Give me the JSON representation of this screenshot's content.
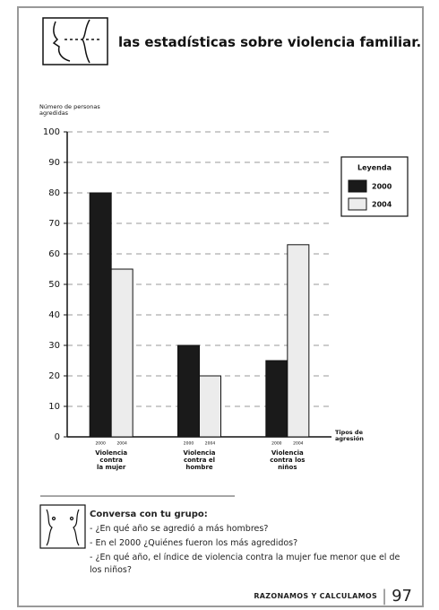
{
  "header": {
    "title": "las estadísticas sobre violencia familiar."
  },
  "chart_data": {
    "type": "bar",
    "y_label": "Número de personas agredidas",
    "x_label": "Tipos de agresión",
    "legend_title": "Leyenda",
    "legend": "right",
    "grid": true,
    "categories": [
      "Violencia\ncontra\nla mujer",
      "Violencia\ncontra el\nhombre",
      "Violencia\ncontra los\nniños"
    ],
    "series": [
      {
        "name": "2000",
        "color": "#1a1a1a",
        "values": [
          80,
          30,
          25
        ]
      },
      {
        "name": "2004",
        "color": "#ececec",
        "values": [
          55,
          20,
          63
        ]
      }
    ],
    "ylim": [
      0,
      100
    ],
    "yticks": [
      0,
      10,
      20,
      30,
      40,
      50,
      60,
      70,
      80,
      90,
      100
    ]
  },
  "conversation": {
    "title": "Conversa con tu grupo:",
    "items": [
      "- ¿En qué año se agredió a más hombres?",
      "- En el 2000 ¿Quiénes fueron los más agredidos?",
      "- ¿En qué año, el índice de violencia contra la mujer fue menor que el de los niños?"
    ]
  },
  "footer": {
    "section": "RAZONAMOS Y CALCULAMOS",
    "page": "97"
  }
}
